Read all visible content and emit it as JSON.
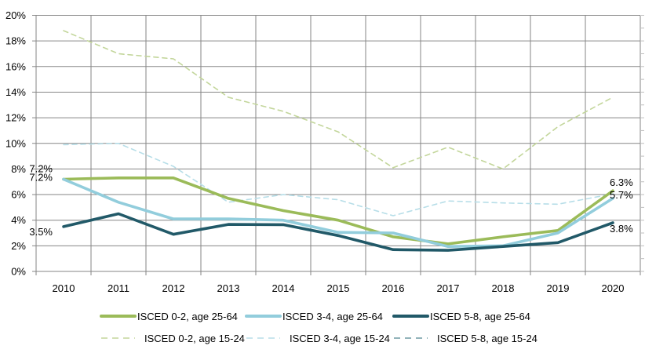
{
  "chart_data": {
    "type": "line",
    "title": "",
    "xlabel": "",
    "ylabel": "",
    "x": [
      "2010",
      "2011",
      "2012",
      "2013",
      "2014",
      "2015",
      "2016",
      "2017",
      "2018",
      "2019",
      "2020"
    ],
    "ylim": [
      0,
      20
    ],
    "yticks": [
      0,
      2,
      4,
      6,
      8,
      10,
      12,
      14,
      16,
      18,
      20
    ],
    "ytick_labels": [
      "0%",
      "2%",
      "4%",
      "6%",
      "8%",
      "10%",
      "12%",
      "14%",
      "16%",
      "18%",
      "20%"
    ],
    "grid": true,
    "legend_position": "bottom",
    "series": [
      {
        "name": "ISCED 0-2, age 25-64",
        "style": "solid",
        "color": "#9BBB59",
        "values": [
          7.2,
          7.3,
          7.3,
          5.7,
          4.75,
          4.0,
          2.7,
          2.15,
          2.7,
          3.2,
          6.3
        ],
        "labels": [
          {
            "index": 0,
            "text": "7.2%"
          },
          {
            "index": 10,
            "text": "6.3%"
          }
        ]
      },
      {
        "name": "ISCED 3-4, age 25-64",
        "style": "solid",
        "color": "#92CDDC",
        "values": [
          7.2,
          5.4,
          4.1,
          4.1,
          4.0,
          3.05,
          3.0,
          1.95,
          2.0,
          3.0,
          5.7
        ],
        "labels": [
          {
            "index": 0,
            "text": "7.2%"
          },
          {
            "index": 10,
            "text": "5.7%"
          }
        ]
      },
      {
        "name": "ISCED 5-8, age 25-64",
        "style": "solid",
        "color": "#215968",
        "values": [
          3.5,
          4.5,
          2.9,
          3.67,
          3.65,
          2.8,
          1.7,
          1.65,
          1.95,
          2.25,
          3.8
        ],
        "labels": [
          {
            "index": 0,
            "text": "3.5%"
          },
          {
            "index": 10,
            "text": "3.8%"
          }
        ]
      },
      {
        "name": "ISCED 0-2, age 15-24",
        "style": "dashed",
        "color": "#C3D69B",
        "values": [
          18.8,
          17.0,
          16.6,
          13.6,
          12.5,
          10.9,
          8.1,
          9.7,
          8.0,
          11.3,
          13.6
        ],
        "labels": []
      },
      {
        "name": "ISCED 3-4, age 15-24",
        "style": "dashed",
        "color": "#B7DEE8",
        "values": [
          9.9,
          10.0,
          8.2,
          5.4,
          6.0,
          5.6,
          4.35,
          5.5,
          5.35,
          5.25,
          6.05
        ],
        "labels": []
      },
      {
        "name": "ISCED 5-8, age 15-24",
        "style": "dashed",
        "color": "#6F9AA4",
        "values": [],
        "labels": []
      }
    ]
  }
}
